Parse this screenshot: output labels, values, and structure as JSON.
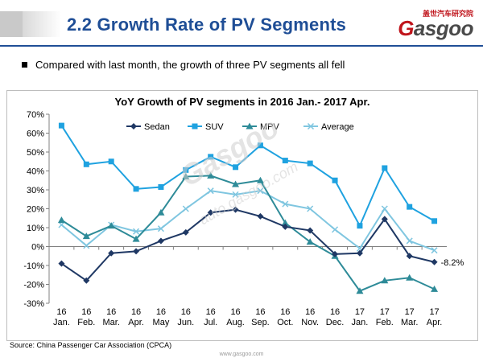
{
  "header": {
    "title": "2.2 Growth Rate of PV Segments",
    "logo_cn": "盖世汽车研究院",
    "logo_prefix": "G",
    "logo_rest": "asgoo"
  },
  "bullet_text": "Compared with last month,  the growth of three PV segments  all fell",
  "watermark": {
    "main": "Gasgoo",
    "url": "auto.gasgoo.com"
  },
  "source": "Source:  China Passenger Car Association (CPCA)",
  "footer_url": "www.gasgoo.com",
  "colors": {
    "sedan": "#1f3864",
    "suv": "#1fa2e0",
    "mpv": "#2e8b98",
    "average": "#7fc6e0",
    "title": "#1f4e96"
  },
  "chart_data": {
    "type": "line",
    "title": "YoY Growth  of PV segments in 2016 Jan.- 2017 Apr.",
    "categories": [
      {
        "year": "16",
        "month": "Jan."
      },
      {
        "year": "16",
        "month": "Feb."
      },
      {
        "year": "16",
        "month": "Mar."
      },
      {
        "year": "16",
        "month": "Apr."
      },
      {
        "year": "16",
        "month": "May"
      },
      {
        "year": "16",
        "month": "Jun."
      },
      {
        "year": "16",
        "month": "Jul."
      },
      {
        "year": "16",
        "month": "Aug."
      },
      {
        "year": "16",
        "month": "Sep."
      },
      {
        "year": "16",
        "month": "Oct."
      },
      {
        "year": "16",
        "month": "Nov."
      },
      {
        "year": "16",
        "month": "Dec."
      },
      {
        "year": "17",
        "month": "Jan."
      },
      {
        "year": "17",
        "month": "Feb."
      },
      {
        "year": "17",
        "month": "Mar."
      },
      {
        "year": "17",
        "month": "Apr."
      }
    ],
    "ylim": [
      -30,
      70
    ],
    "yticks": [
      -30,
      -20,
      -10,
      0,
      10,
      20,
      30,
      40,
      50,
      60,
      70
    ],
    "ytick_labels": [
      "-30%",
      "-20%",
      "-10%",
      "0%",
      "10%",
      "20%",
      "30%",
      "40%",
      "50%",
      "60%",
      "70%"
    ],
    "series": [
      {
        "name": "Sedan",
        "marker": "diamond",
        "values": [
          -9,
          -18,
          -3.5,
          -2.5,
          3,
          7.5,
          18,
          19.5,
          16,
          10.5,
          8.5,
          -4,
          -3.5,
          14.5,
          -5,
          -8.2
        ]
      },
      {
        "name": "SUV",
        "marker": "square",
        "values": [
          64,
          43.5,
          45,
          30.5,
          31.5,
          40.5,
          47.5,
          42,
          53.5,
          45.5,
          44,
          35,
          11,
          41.5,
          21,
          13.5
        ]
      },
      {
        "name": "MPV",
        "marker": "triangle",
        "values": [
          14,
          5.5,
          11,
          4,
          18,
          37,
          37.5,
          33,
          35,
          12.5,
          2.5,
          -5,
          -23.5,
          -18,
          -16.5,
          -22.5
        ]
      },
      {
        "name": "Average",
        "marker": "x",
        "values": [
          11.5,
          0.5,
          11.5,
          8,
          9.5,
          20,
          29.5,
          27.5,
          29.5,
          22.5,
          20,
          9,
          -1,
          20,
          3,
          -2
        ]
      }
    ],
    "annotation": {
      "series": "Sedan",
      "index": 15,
      "text": "-8.2%"
    },
    "legend": "top"
  }
}
